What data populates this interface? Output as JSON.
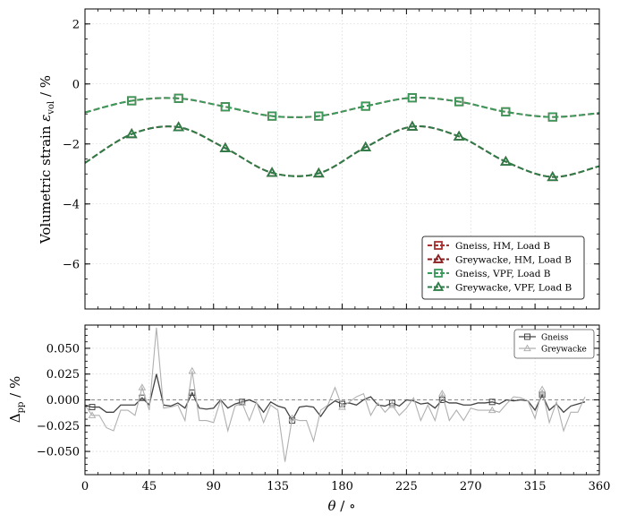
{
  "chart_data": [
    {
      "type": "line",
      "ylabel_main": "Volumetric strain ",
      "ylabel_symbol": "ε",
      "ylabel_sub": "vol",
      "ylabel_unit": " / %",
      "xlim": [
        0,
        360
      ],
      "ylim": [
        -7.5,
        2.5
      ],
      "xticks": [
        0,
        45,
        90,
        135,
        180,
        225,
        270,
        315,
        360
      ],
      "yticks": [
        2,
        0,
        -2,
        -4,
        -6
      ],
      "ytick_labels": [
        "2",
        "0",
        "−2",
        "−4",
        "−6"
      ],
      "grid": true,
      "legend_position": "lower-right",
      "x": [
        0,
        32.7,
        65.5,
        98.2,
        130.9,
        163.6,
        196.4,
        229.1,
        261.8,
        294.5,
        327.3,
        360
      ],
      "series": [
        {
          "name": "Gneiss, HM, Load B",
          "color": "#a83232",
          "marker": "square",
          "linestyle": "dashed",
          "values": [
            -0.95,
            -0.56,
            -0.48,
            -0.76,
            -1.07,
            -1.07,
            -0.74,
            -0.46,
            -0.59,
            -0.93,
            -1.1,
            -0.97
          ]
        },
        {
          "name": "Greywacke, HM, Load B",
          "color": "#8b1e1e",
          "marker": "triangle",
          "linestyle": "dashed",
          "values": [
            -2.63,
            -1.67,
            -1.44,
            -2.14,
            -2.96,
            -2.98,
            -2.11,
            -1.42,
            -1.75,
            -2.59,
            -3.1,
            -2.74
          ]
        },
        {
          "name": "Gneiss, VPF, Load B",
          "color": "#3a9a5b",
          "marker": "square",
          "linestyle": "dashed",
          "values": [
            -0.95,
            -0.56,
            -0.48,
            -0.76,
            -1.07,
            -1.07,
            -0.74,
            -0.46,
            -0.59,
            -0.93,
            -1.1,
            -0.97
          ]
        },
        {
          "name": "Greywacke, VPF, Load B",
          "color": "#2e7d48",
          "marker": "triangle",
          "linestyle": "dashed",
          "values": [
            -2.63,
            -1.67,
            -1.44,
            -2.14,
            -2.96,
            -2.98,
            -2.11,
            -1.42,
            -1.75,
            -2.59,
            -3.1,
            -2.74
          ]
        }
      ]
    },
    {
      "type": "line",
      "ylabel_symbol": "Δ",
      "ylabel_sub": "pp",
      "ylabel_unit": " / %",
      "xlabel_symbol": "θ",
      "xlabel_unit": " / ∘",
      "xlim": [
        0,
        360
      ],
      "ylim": [
        -0.0725,
        0.0725
      ],
      "xticks": [
        0,
        45,
        90,
        135,
        180,
        225,
        270,
        315,
        360
      ],
      "yticks": [
        0.05,
        0.025,
        0,
        -0.025,
        -0.05
      ],
      "ytick_labels": [
        "0.050",
        "0.025",
        "0.000",
        "−0.025",
        "−0.050"
      ],
      "reference_line": 0,
      "grid": true,
      "legend_position": "upper-right",
      "x": [
        0,
        5,
        10,
        15,
        20,
        25,
        30,
        35,
        40,
        45,
        50,
        55,
        60,
        65,
        70,
        75,
        80,
        85,
        90,
        95,
        100,
        105,
        110,
        115,
        120,
        125,
        130,
        135,
        140,
        145,
        150,
        155,
        160,
        165,
        170,
        175,
        180,
        185,
        190,
        195,
        200,
        205,
        210,
        215,
        220,
        225,
        230,
        235,
        240,
        245,
        250,
        255,
        260,
        265,
        270,
        275,
        280,
        285,
        290,
        295,
        300,
        305,
        310,
        315,
        320,
        325,
        330,
        335,
        340,
        345,
        350
      ],
      "series": [
        {
          "name": "Gneiss",
          "color": "#444444",
          "marker": "square",
          "values": [
            -0.005,
            -0.007,
            -0.007,
            -0.012,
            -0.012,
            -0.005,
            -0.005,
            -0.005,
            0.002,
            -0.005,
            0.025,
            -0.005,
            -0.006,
            -0.003,
            -0.008,
            0.007,
            -0.008,
            -0.009,
            -0.008,
            0.0,
            -0.008,
            -0.004,
            -0.002,
            0.0,
            -0.003,
            -0.012,
            -0.002,
            -0.006,
            -0.008,
            -0.02,
            -0.007,
            -0.006,
            -0.007,
            -0.016,
            -0.006,
            -0.001,
            -0.004,
            -0.003,
            -0.005,
            0.0,
            0.003,
            -0.005,
            -0.006,
            -0.003,
            -0.006,
            0.0,
            -0.001,
            -0.004,
            -0.003,
            -0.008,
            0.0,
            -0.003,
            -0.003,
            -0.005,
            -0.005,
            -0.003,
            -0.003,
            -0.002,
            -0.004,
            0.0,
            -0.001,
            0.0,
            -0.001,
            -0.01,
            0.005,
            -0.01,
            -0.004,
            -0.012,
            -0.006,
            -0.004,
            -0.002
          ]
        },
        {
          "name": "Greywacke",
          "color": "#b0b0b0",
          "marker": "triangle",
          "values": [
            -0.005,
            -0.015,
            -0.015,
            -0.027,
            -0.03,
            -0.01,
            -0.01,
            -0.015,
            0.012,
            -0.01,
            0.07,
            -0.008,
            -0.007,
            -0.005,
            -0.02,
            0.028,
            -0.02,
            -0.02,
            -0.022,
            0.0,
            -0.03,
            -0.006,
            -0.003,
            -0.02,
            -0.002,
            -0.022,
            -0.005,
            -0.01,
            -0.06,
            -0.018,
            -0.02,
            -0.02,
            -0.04,
            -0.01,
            -0.005,
            0.012,
            -0.007,
            -0.002,
            0.003,
            0.006,
            -0.015,
            -0.003,
            -0.012,
            -0.005,
            -0.015,
            -0.008,
            0.002,
            -0.02,
            -0.005,
            -0.02,
            0.006,
            -0.02,
            -0.01,
            -0.02,
            -0.008,
            -0.01,
            -0.01,
            -0.01,
            -0.012,
            -0.004,
            0.003,
            0.002,
            -0.001,
            -0.018,
            0.01,
            -0.022,
            -0.002,
            -0.03,
            -0.012,
            -0.012,
            0.003
          ]
        }
      ]
    }
  ]
}
